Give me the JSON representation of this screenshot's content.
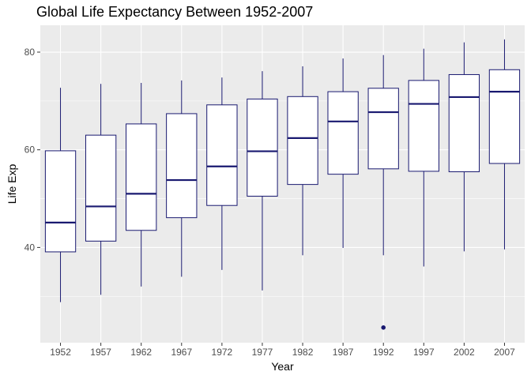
{
  "chart_data": {
    "type": "boxplot",
    "title": "Global Life Expectancy Between 1952-2007",
    "xlabel": "Year",
    "ylabel": "Life Exp",
    "ylim": [
      20.5,
      85.5
    ],
    "yticks": [
      40,
      60,
      80
    ],
    "grid": true,
    "colors": {
      "panel": "#EBEBEB",
      "grid": "#FFFFFF",
      "box_line": "#191970",
      "box_fill": "#FFFFFF",
      "tick_mark": "#333333"
    },
    "categories": [
      "1952",
      "1957",
      "1962",
      "1967",
      "1972",
      "1977",
      "1982",
      "1987",
      "1992",
      "1997",
      "2002",
      "2007"
    ],
    "boxes": [
      {
        "min": 28.8,
        "q1": 39.1,
        "median": 45.1,
        "q3": 59.8,
        "max": 72.7,
        "outliers": []
      },
      {
        "min": 30.3,
        "q1": 41.3,
        "median": 48.4,
        "q3": 63.0,
        "max": 73.5,
        "outliers": []
      },
      {
        "min": 32.0,
        "q1": 43.5,
        "median": 51.0,
        "q3": 65.3,
        "max": 73.7,
        "outliers": []
      },
      {
        "min": 34.0,
        "q1": 46.1,
        "median": 53.8,
        "q3": 67.4,
        "max": 74.2,
        "outliers": []
      },
      {
        "min": 35.4,
        "q1": 48.6,
        "median": 56.6,
        "q3": 69.2,
        "max": 74.8,
        "outliers": []
      },
      {
        "min": 31.2,
        "q1": 50.5,
        "median": 59.7,
        "q3": 70.4,
        "max": 76.1,
        "outliers": []
      },
      {
        "min": 38.4,
        "q1": 52.9,
        "median": 62.4,
        "q3": 70.9,
        "max": 77.1,
        "outliers": []
      },
      {
        "min": 39.9,
        "q1": 55.0,
        "median": 65.8,
        "q3": 71.9,
        "max": 78.7,
        "outliers": []
      },
      {
        "min": 38.4,
        "q1": 56.1,
        "median": 67.7,
        "q3": 72.6,
        "max": 79.4,
        "outliers": [
          23.6
        ]
      },
      {
        "min": 36.1,
        "q1": 55.6,
        "median": 69.4,
        "q3": 74.2,
        "max": 80.7,
        "outliers": []
      },
      {
        "min": 39.2,
        "q1": 55.5,
        "median": 70.8,
        "q3": 75.4,
        "max": 82.0,
        "outliers": []
      },
      {
        "min": 39.6,
        "q1": 57.2,
        "median": 71.9,
        "q3": 76.4,
        "max": 82.6,
        "outliers": []
      }
    ]
  }
}
